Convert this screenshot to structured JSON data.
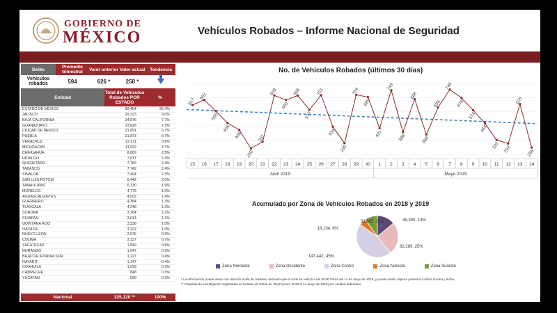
{
  "header": {
    "logo_line1": "GOBIERNO DE",
    "logo_line2": "MÉXICO",
    "title": "Vehículos Robados – Informe Nacional de Seguridad"
  },
  "kpi": {
    "h_delito": "Delito",
    "h_promedio": "Promedio trimestral",
    "h_anterior": "Valor anterior",
    "h_actual": "Valor actual",
    "h_tendencia": "Tendencia",
    "label": "Vehículos robados",
    "promedio": "594",
    "anterior": "626 *",
    "actual": "258 *",
    "trend_icon": "down-arrow-icon"
  },
  "table": {
    "h_entidad": "Entidad",
    "h_total": "Total de Vehículos Robados POR ESTADO",
    "h_pct": "%",
    "rows": [
      {
        "e": "ESTADO DE MÉXICO",
        "t": "82,454",
        "p": "25.4%"
      },
      {
        "e": "JALISCO",
        "t": "29,323",
        "p": "9.0%"
      },
      {
        "e": "BAJA CALIFORNIA",
        "t": "24,876",
        "p": "7.7%"
      },
      {
        "e": "GUANAJUATO",
        "t": "23,626",
        "p": "7.3%"
      },
      {
        "e": "CIUDAD DE MÉXICO",
        "t": "21,891",
        "p": "6.7%"
      },
      {
        "e": "PUEBLA",
        "t": "21,873",
        "p": "6.7%"
      },
      {
        "e": "VERACRUZ",
        "t": "12,511",
        "p": "3.8%"
      },
      {
        "e": "MICHOACÁN",
        "t": "11,922",
        "p": "3.7%"
      },
      {
        "e": "CHIHUAHUA",
        "t": "8,009",
        "p": "2.5%"
      },
      {
        "e": "HIDALGO",
        "t": "7,817",
        "p": "2.4%"
      },
      {
        "e": "QUERÉTARO",
        "t": "7,783",
        "p": "2.4%"
      },
      {
        "e": "TABASCO",
        "t": "7,742",
        "p": "2.4%"
      },
      {
        "e": "SINALOA",
        "t": "7,494",
        "p": "2.3%"
      },
      {
        "e": "SAN LUIS POTOSÍ",
        "t": "6,442",
        "p": "2.0%"
      },
      {
        "e": "TAMAULIPAS",
        "t": "6,130",
        "p": "1.9%"
      },
      {
        "e": "MORELOS",
        "t": "4,775",
        "p": "1.5%"
      },
      {
        "e": "AGUASCALIENTES",
        "t": "4,502",
        "p": "1.4%"
      },
      {
        "e": "GUERRERO",
        "t": "4,384",
        "p": "1.3%"
      },
      {
        "e": "TLAXCALA",
        "t": "4,248",
        "p": "1.3%"
      },
      {
        "e": "SONORA",
        "t": "3,784",
        "p": "1.2%"
      },
      {
        "e": "CHIAPAS",
        "t": "3,614",
        "p": "1.1%"
      },
      {
        "e": "QUINTANA ROO",
        "t": "3,338",
        "p": "1.0%"
      },
      {
        "e": "OAXACA",
        "t": "3,222",
        "p": "1.0%"
      },
      {
        "e": "NUEVO LEÓN",
        "t": "2,976",
        "p": "0.9%"
      },
      {
        "e": "COLIMA",
        "t": "2,137",
        "p": "0.7%"
      },
      {
        "e": "ZACATECAS",
        "t": "1,849",
        "p": "0.6%"
      },
      {
        "e": "DURANGO",
        "t": "1,547",
        "p": "0.5%"
      },
      {
        "e": "BAJA CALIFORNIA SUR",
        "t": "1,227",
        "p": "0.4%"
      },
      {
        "e": "NAYARIT",
        "t": "1,147",
        "p": "0.4%"
      },
      {
        "e": "COAHUILA",
        "t": "1,039",
        "p": "0.3%"
      },
      {
        "e": "CAMPECHE",
        "t": "848",
        "p": "0.3%"
      },
      {
        "e": "YUCATÁN",
        "t": "590",
        "p": "0.2%"
      }
    ],
    "footer_label": "Nacional",
    "footer_total": "325,120 **",
    "footer_pct": "100%"
  },
  "chart_data": [
    {
      "type": "line",
      "title": "No. de Vehículos Robados (últimos 30 días)",
      "categories": [
        "15",
        "16",
        "17",
        "18",
        "19",
        "20",
        "21",
        "22",
        "23",
        "24",
        "25",
        "26",
        "27",
        "28",
        "29",
        "30",
        "1",
        "2",
        "3",
        "4",
        "5",
        "6",
        "7",
        "8",
        "9",
        "10",
        "11",
        "12",
        "13",
        "14"
      ],
      "groups": [
        {
          "label": "Abril 2019",
          "from": 0,
          "to": 15
        },
        {
          "label": "Mayo 2019",
          "from": 16,
          "to": 29
        }
      ],
      "values": [
        617,
        662,
        566,
        466,
        408,
        250,
        307,
        699,
        660,
        698,
        577,
        701,
        434,
        295,
        704,
        685,
        421,
        743,
        388,
        668,
        368,
        598,
        749,
        678,
        574,
        464,
        322,
        292,
        626,
        258
      ],
      "trend": {
        "start": 580,
        "end": 460,
        "color": "#3a86c8"
      },
      "line_color": "#8c2a2a",
      "ylim": [
        200,
        800
      ]
    },
    {
      "type": "pie",
      "title": "Acumulado por Zona de Vehículos Robados en 2018 y 2019",
      "slices": [
        {
          "name": "Zona Noroeste",
          "value": 45390,
          "label": "45,390, 14%",
          "color": "#5a4a7a"
        },
        {
          "name": "Zona Occidente",
          "value": 82289,
          "label": "82,289, 25%",
          "color": "#e9b8b8"
        },
        {
          "name": "Zona Centro",
          "value": 147442,
          "label": "147,442, 45%",
          "color": "#d5cfe3"
        },
        {
          "name": "Zona Noreste",
          "value": 18134,
          "label": "18,134, 6%",
          "color": "#e07a2a"
        },
        {
          "name": "Zona Sureste",
          "value": 31865,
          "label": "31,865, 10%",
          "color": "#7a9a3a"
        }
      ]
    }
  ],
  "notes": {
    "n1": "* La información puede variar con relación al día de mañana, derivado que el corte se realizó a las 20:00 horas del 14 de mayo de 2019, y puede existir captura posterior a dicho horario y fecha",
    "n2": "** Carpetas de investigación registradas en la Base de Datos de Vibyll (enero 2018 al 14 mayo de 2019) por entidad federativa."
  }
}
